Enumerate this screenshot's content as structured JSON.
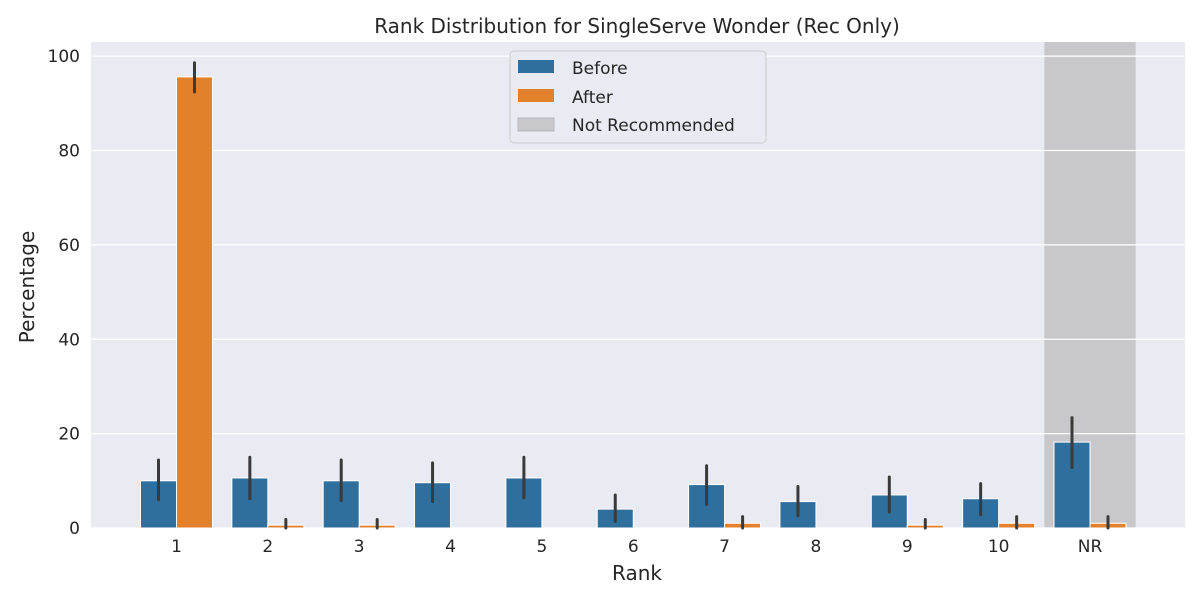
{
  "chart_data": {
    "type": "bar",
    "title": "Rank Distribution for SingleServe Wonder (Rec Only)",
    "xlabel": "Rank",
    "ylabel": "Percentage",
    "categories": [
      "1",
      "2",
      "3",
      "4",
      "5",
      "6",
      "7",
      "8",
      "9",
      "10",
      "NR"
    ],
    "ylim": [
      0,
      103
    ],
    "yticks": [
      "0",
      "20",
      "40",
      "60",
      "80",
      "100"
    ],
    "grid": true,
    "legend_position": "top-center",
    "series": [
      {
        "name": "Before",
        "color": "#2e6f9e",
        "values": [
          10.0,
          10.6,
          10.0,
          9.6,
          10.6,
          4.0,
          9.2,
          5.6,
          7.0,
          6.2,
          18.2
        ],
        "error_low": [
          6.0,
          6.2,
          5.8,
          5.6,
          6.4,
          1.4,
          5.0,
          2.6,
          3.4,
          2.8,
          12.8
        ],
        "error_high": [
          14.4,
          15.0,
          14.4,
          13.8,
          15.0,
          7.0,
          13.2,
          8.8,
          10.8,
          9.4,
          23.4
        ]
      },
      {
        "name": "After",
        "color": "#e1812c",
        "values": [
          95.6,
          0.6,
          0.6,
          0.0,
          0.0,
          0.0,
          1.0,
          0.0,
          0.6,
          1.0,
          1.0
        ],
        "error_low": [
          92.4,
          0.0,
          0.0,
          0.0,
          0.0,
          0.0,
          0.0,
          0.0,
          0.0,
          0.0,
          0.0
        ],
        "error_high": [
          98.6,
          1.8,
          1.8,
          0.0,
          0.0,
          0.0,
          2.4,
          0.0,
          1.8,
          2.4,
          2.4
        ]
      }
    ],
    "highlight": {
      "category": "NR",
      "label": "Not Recommended",
      "color": "#c8c8cc"
    }
  }
}
